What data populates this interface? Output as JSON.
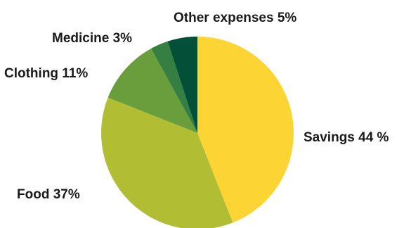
{
  "chart_data": {
    "type": "pie",
    "title": "",
    "slices": [
      {
        "label": "Savings",
        "value": 44,
        "label_text": "Savings 44 %",
        "color": "#FCD535"
      },
      {
        "label": "Food",
        "value": 37,
        "label_text": "Food 37%",
        "color": "#B1BE34"
      },
      {
        "label": "Clothing",
        "value": 11,
        "label_text": "Clothing 11%",
        "color": "#6A9E3C"
      },
      {
        "label": "Medicine",
        "value": 3,
        "label_text": "Medicine 3%",
        "color": "#347F41"
      },
      {
        "label": "Other expenses",
        "value": 5,
        "label_text": "Other expenses 5%",
        "color": "#044F37"
      }
    ],
    "start_angle": "12 o'clock",
    "direction": "clockwise",
    "legend": "none"
  }
}
